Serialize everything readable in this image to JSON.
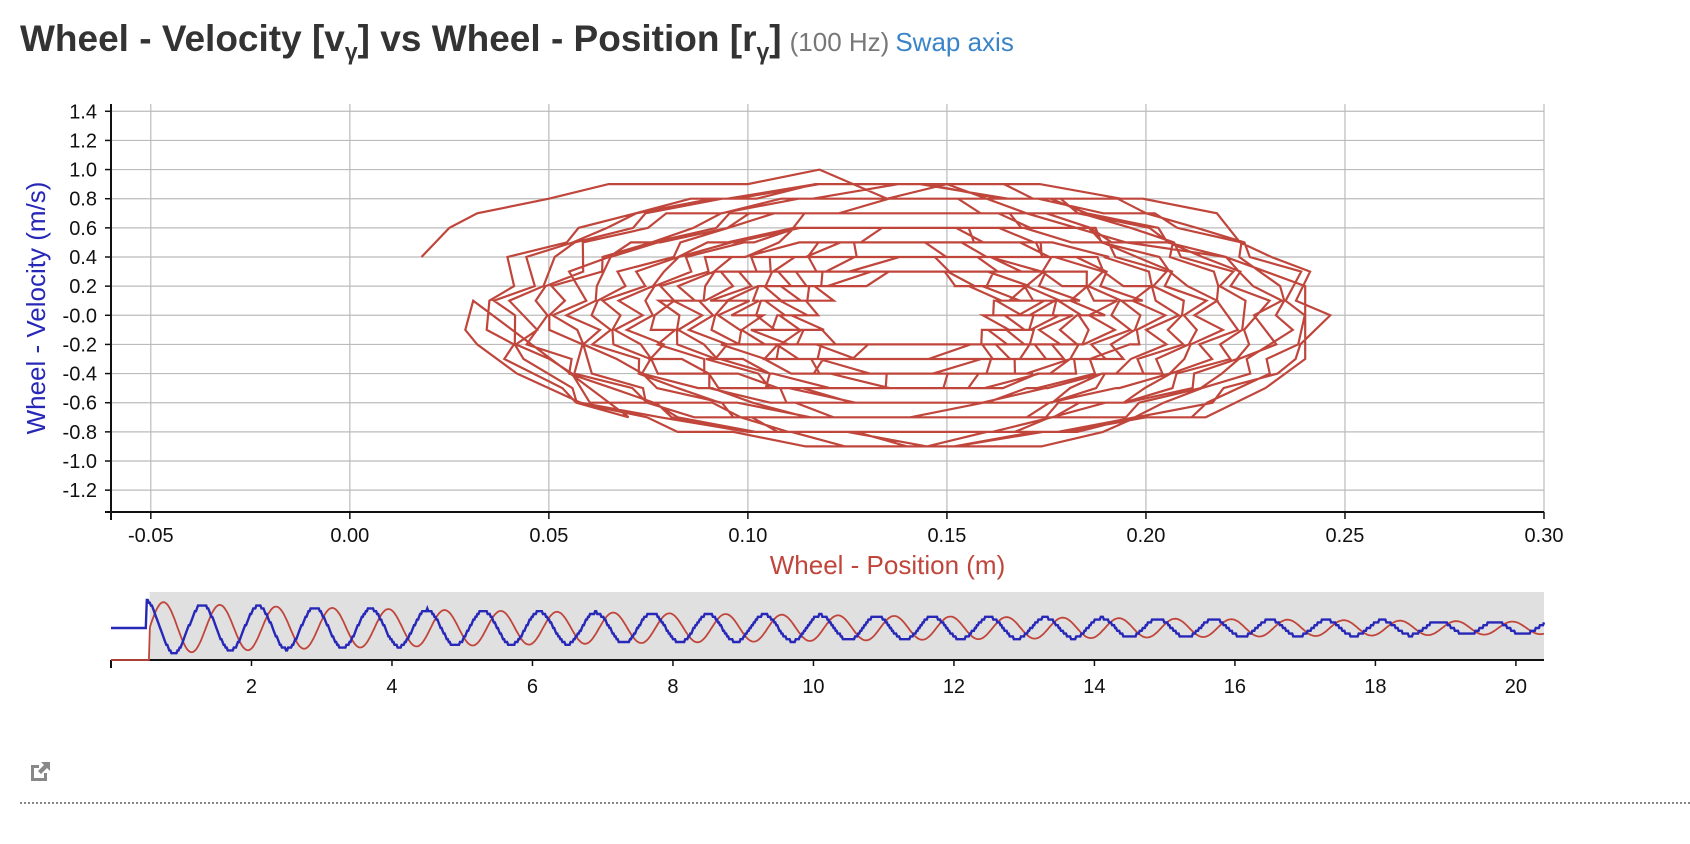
{
  "header": {
    "title_prefix": "Wheel - Velocity [v",
    "title_sub1": "γ",
    "title_mid": "] vs Wheel - Position [r",
    "title_sub2": "γ",
    "title_suffix": "]",
    "rate": "(100 Hz)",
    "swap_label": "Swap axis"
  },
  "icons": {
    "popout": "external-link-icon"
  },
  "colors": {
    "position": "#c0463c",
    "velocity": "#2727b8",
    "grid": "#bbbbbb",
    "navigator_bg": "#e0e0e0"
  },
  "chart_data": [
    {
      "type": "line",
      "name": "main-phase-plot",
      "xlabel": "Wheel - Position (m)",
      "ylabel": "Wheel - Velocity (m/s)",
      "xlim": [
        -0.06,
        0.3
      ],
      "ylim": [
        -1.35,
        1.45
      ],
      "xticks": [
        -0.05,
        0.0,
        0.05,
        0.1,
        0.15,
        0.2,
        0.25,
        0.3
      ],
      "xtick_labels": [
        "-0.05",
        "0.00",
        "0.05",
        "0.10",
        "0.15",
        "0.20",
        "0.25",
        "0.30"
      ],
      "yticks": [
        1.4,
        1.2,
        1.0,
        0.8,
        0.6,
        0.4,
        0.2,
        0.0,
        -0.2,
        -0.4,
        -0.6,
        -0.8,
        -1.0,
        -1.2
      ],
      "ytick_labels": [
        "1.4",
        "1.2",
        "1.0",
        "0.8",
        "0.6",
        "0.4",
        "0.2",
        "-0.0",
        "-0.2",
        "-0.4",
        "-0.6",
        "-0.8",
        "-1.0",
        "-1.2"
      ],
      "grid": true,
      "series": [
        {
          "color": "#c0463c",
          "center_position": 0.14,
          "center_velocity": 0.0,
          "position_amplitude_start": 0.105,
          "position_amplitude_end": 0.022,
          "velocity_amplitude_start": 0.95,
          "velocity_amplitude_end": 0.25,
          "cycles": 22,
          "x": [
            0.018,
            0.025,
            0.032,
            0.05,
            0.065,
            0.08,
            0.1,
            0.118,
            0.135,
            0.15,
            0.17,
            0.195,
            0.22,
            0.24,
            0.24,
            0.23,
            0.215,
            0.2,
            0.18,
            0.16,
            0.145,
            0.125,
            0.1,
            0.078,
            0.058,
            0.042,
            0.032,
            0.029,
            0.031
          ],
          "y": [
            0.4,
            0.6,
            0.7,
            0.8,
            0.9,
            0.9,
            0.9,
            1.0,
            0.8,
            0.9,
            0.7,
            0.5,
            0.4,
            0.2,
            -0.3,
            -0.5,
            -0.7,
            -0.7,
            -0.8,
            -0.8,
            -0.9,
            -0.8,
            -0.8,
            -0.7,
            -0.6,
            -0.4,
            -0.2,
            -0.1,
            0.1
          ]
        }
      ]
    },
    {
      "type": "line",
      "name": "time-navigator",
      "xlim": [
        0,
        20.4
      ],
      "xticks": [
        2,
        4,
        6,
        8,
        10,
        12,
        14,
        16,
        18,
        20
      ],
      "xtick_labels": [
        "2",
        "4",
        "6",
        "8",
        "10",
        "12",
        "14",
        "16",
        "18",
        "20"
      ],
      "selection_start": 0.55,
      "series": [
        {
          "color": "#c0463c",
          "start_time": 0.55,
          "amplitude_start": 1.0,
          "amplitude_end": 0.22,
          "period": 0.8
        },
        {
          "color": "#2727b8",
          "start_time": 0.5,
          "amplitude_start": 1.0,
          "amplitude_end": 0.22,
          "period": 0.8
        }
      ]
    }
  ]
}
